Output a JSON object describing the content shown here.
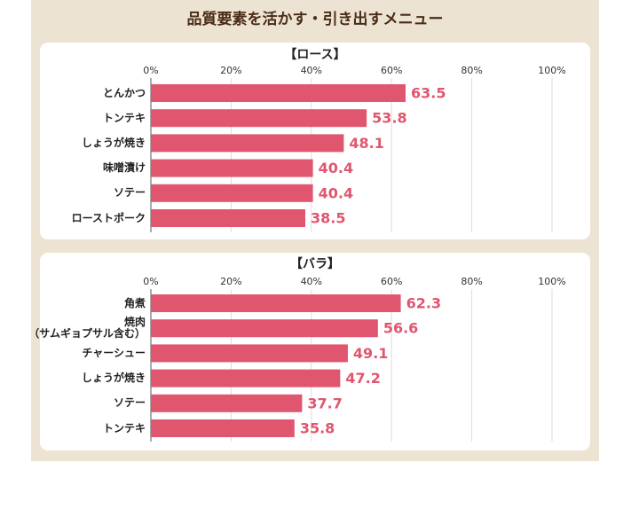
{
  "title": "品質要素を活かす・引き出すメニュー",
  "chart_data": [
    {
      "type": "bar",
      "orientation": "horizontal",
      "title": "【ロース】",
      "categories": [
        "とんかつ",
        "トンテキ",
        "しょうが焼き",
        "味噌漬け",
        "ソテー",
        "ローストポーク"
      ],
      "values": [
        63.5,
        53.8,
        48.1,
        40.4,
        40.4,
        38.5
      ],
      "color": "#e0566f",
      "xlim": [
        0,
        100
      ],
      "xticks": [
        {
          "value": 0,
          "label": "0%"
        },
        {
          "value": 20,
          "label": "20%"
        },
        {
          "value": 40,
          "label": "40%"
        },
        {
          "value": 60,
          "label": "60%"
        },
        {
          "value": 80,
          "label": "80%"
        },
        {
          "value": 100,
          "label": "100%"
        }
      ],
      "grid": true
    },
    {
      "type": "bar",
      "orientation": "horizontal",
      "title": "【バラ】",
      "categories": [
        "角煮",
        "焼肉\n（サムギョプサル含む）",
        "チャーシュー",
        "しょうが焼き",
        "ソテー",
        "トンテキ"
      ],
      "values": [
        62.3,
        56.6,
        49.1,
        47.2,
        37.7,
        35.8
      ],
      "color": "#e0566f",
      "xlim": [
        0,
        100
      ],
      "xticks": [
        {
          "value": 0,
          "label": "0%"
        },
        {
          "value": 20,
          "label": "20%"
        },
        {
          "value": 40,
          "label": "40%"
        },
        {
          "value": 60,
          "label": "60%"
        },
        {
          "value": 80,
          "label": "80%"
        },
        {
          "value": 100,
          "label": "100%"
        }
      ],
      "grid": true
    }
  ]
}
